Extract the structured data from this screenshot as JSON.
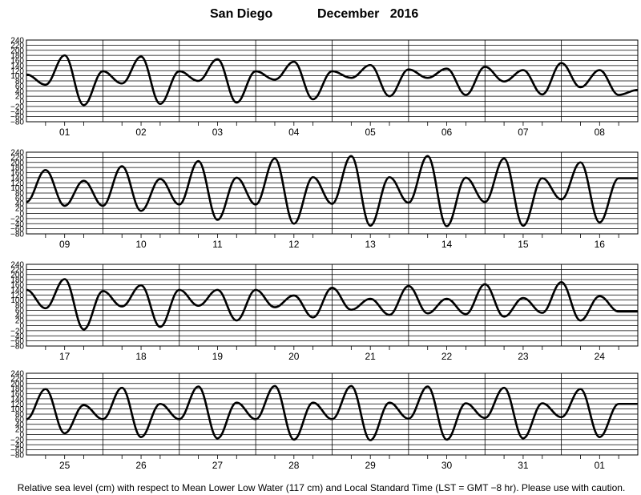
{
  "header": {
    "location": "San Diego",
    "month_year": "December   2016"
  },
  "footer": {
    "note": "Relative sea level (cm) with respect to Mean Lower Low Water (117 cm) and Local Standard Time (LST = GMT −8 hr). Please use with caution."
  },
  "chart_data": {
    "type": "line",
    "title": "San Diego          December   2016",
    "ylabel": "Relative sea level (cm)",
    "ylim": [
      -80,
      240
    ],
    "yticks": [
      240,
      220,
      200,
      180,
      160,
      140,
      120,
      100,
      80,
      60,
      40,
      20,
      0,
      -20,
      -40,
      -60,
      -80
    ],
    "grid": true,
    "panels": [
      {
        "days": [
          "01",
          "02",
          "03",
          "04",
          "05",
          "06",
          "07",
          "08"
        ],
        "series": [
          {
            "values": [
              105,
              65,
              180,
              -15,
              118,
              70,
              175,
              -10,
              118,
              80,
              165,
              -5,
              118,
              85,
              155,
              8,
              118,
              92,
              142,
              20,
              125,
              92,
              128,
              25,
              135,
              78,
              122,
              27,
              150,
              55,
              122,
              25,
              45
            ]
          }
        ]
      },
      {
        "days": [
          "09",
          "10",
          "11",
          "12",
          "13",
          "14",
          "15",
          "16"
        ],
        "series": [
          {
            "values": [
              45,
              170,
              30,
              128,
              30,
              185,
              10,
              135,
              35,
              205,
              -25,
              140,
              35,
              215,
              -40,
              142,
              38,
              225,
              -48,
              142,
              42,
              225,
              -50,
              140,
              45,
              215,
              -48,
              138,
              55,
              200,
              -35,
              138,
              138
            ]
          }
        ]
      },
      {
        "days": [
          "17",
          "18",
          "19",
          "20",
          "21",
          "22",
          "23",
          "24"
        ],
        "series": [
          {
            "values": [
              140,
              68,
              182,
              -15,
              135,
              75,
              158,
              -5,
              140,
              78,
              140,
              20,
              140,
              72,
              118,
              32,
              148,
              62,
              105,
              42,
              155,
              48,
              105,
              45,
              162,
              35,
              108,
              50,
              170,
              20,
              115,
              55,
              55
            ]
          }
        ]
      },
      {
        "days": [
          "25",
          "26",
          "27",
          "28",
          "29",
          "30",
          "31",
          "01"
        ],
        "series": [
          {
            "values": [
              60,
              178,
              5,
              115,
              60,
              183,
              -10,
              120,
              60,
              188,
              -15,
              125,
              60,
              190,
              -20,
              125,
              60,
              190,
              -22,
              125,
              62,
              188,
              -20,
              122,
              65,
              183,
              -15,
              122,
              68,
              178,
              -10,
              120,
              120
            ]
          }
        ]
      }
    ]
  }
}
